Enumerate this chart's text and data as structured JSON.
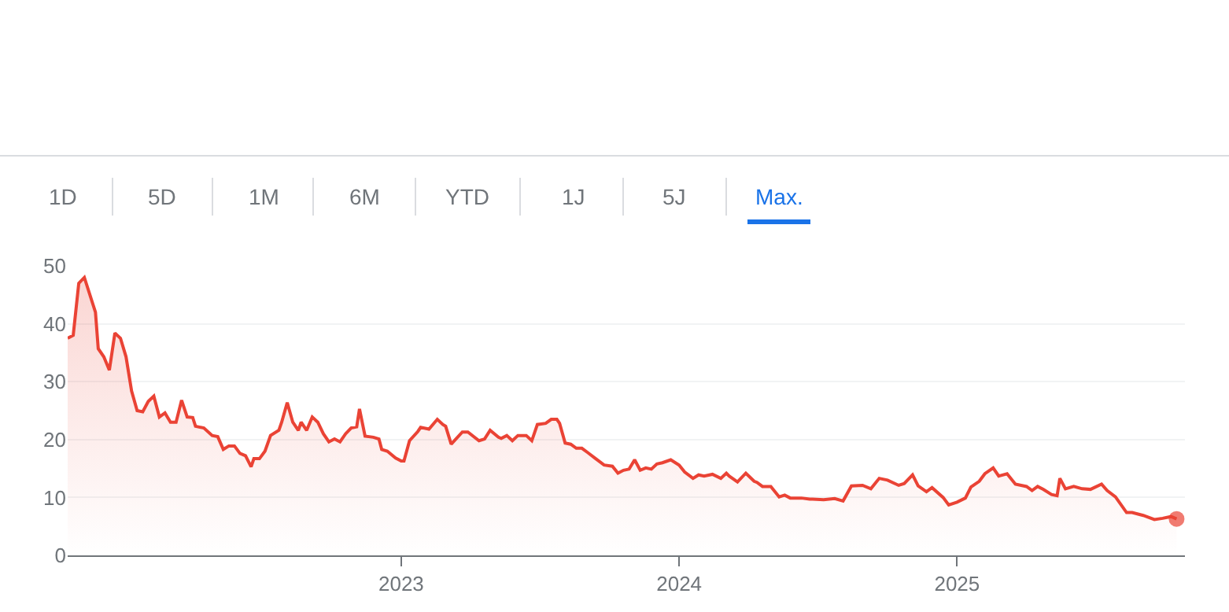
{
  "chart_data": {
    "type": "area",
    "color": "#ea4335",
    "annotations": [
      "1D",
      "5D",
      "1M",
      "6M",
      "YTD",
      "1J",
      "5J",
      "Max."
    ],
    "xlim": [
      2021.8,
      2025.82
    ],
    "xticks": [
      2023,
      2024,
      2025
    ],
    "ylim": [
      0,
      50
    ],
    "yticks": [
      0,
      10,
      20,
      30,
      40,
      50
    ],
    "grid": "y",
    "legend": false,
    "x": [
      2021.8,
      2021.82,
      2021.84,
      2021.86,
      2021.9,
      2021.91,
      2021.93,
      2021.95,
      2021.97,
      2021.99,
      2022.01,
      2022.03,
      2022.05,
      2022.07,
      2022.09,
      2022.11,
      2022.13,
      2022.15,
      2022.17,
      2022.19,
      2022.21,
      2022.23,
      2022.25,
      2022.26,
      2022.29,
      2022.32,
      2022.34,
      2022.36,
      2022.38,
      2022.4,
      2022.42,
      2022.44,
      2022.46,
      2022.47,
      2022.49,
      2022.51,
      2022.53,
      2022.56,
      2022.57,
      2022.59,
      2022.61,
      2022.63,
      2022.64,
      2022.66,
      2022.68,
      2022.7,
      2022.72,
      2022.74,
      2022.76,
      2022.78,
      2022.8,
      2022.82,
      2022.84,
      2022.85,
      2022.87,
      2022.9,
      2022.92,
      2022.93,
      2022.95,
      2022.98,
      2023.0,
      2023.01,
      2023.03,
      2023.06,
      2023.07,
      2023.1,
      2023.13,
      2023.15,
      2023.16,
      2023.18,
      2023.22,
      2023.24,
      2023.28,
      2023.3,
      2023.32,
      2023.35,
      2023.36,
      2023.38,
      2023.4,
      2023.42,
      2023.45,
      2023.47,
      2023.49,
      2023.52,
      2023.54,
      2023.56,
      2023.57,
      2023.59,
      2023.61,
      2023.63,
      2023.65,
      2023.67,
      2023.7,
      2023.73,
      2023.76,
      2023.78,
      2023.8,
      2023.82,
      2023.84,
      2023.86,
      2023.88,
      2023.9,
      2023.92,
      2023.94,
      2023.97,
      2024.0,
      2024.02,
      2024.05,
      2024.07,
      2024.09,
      2024.12,
      2024.15,
      2024.17,
      2024.18,
      2024.21,
      2024.24,
      2024.27,
      2024.28,
      2024.3,
      2024.33,
      2024.36,
      2024.38,
      2024.4,
      2024.44,
      2024.47,
      2024.48,
      2024.52,
      2024.56,
      2024.59,
      2024.62,
      2024.66,
      2024.69,
      2024.72,
      2024.75,
      2024.79,
      2024.81,
      2024.84,
      2024.86,
      2024.89,
      2024.91,
      2024.95,
      2024.97,
      2025.0,
      2025.03,
      2025.05,
      2025.08,
      2025.1,
      2025.13,
      2025.15,
      2025.18,
      2025.21,
      2025.25,
      2025.27,
      2025.29,
      2025.31,
      2025.34,
      2025.36,
      2025.37,
      2025.39,
      2025.42,
      2025.45,
      2025.48,
      2025.52,
      2025.54,
      2025.57,
      2025.61,
      2025.63,
      2025.67,
      2025.71,
      2025.74,
      2025.77,
      2025.79
    ],
    "values": [
      37.5,
      38,
      47,
      48,
      42,
      35.7,
      34.3,
      32,
      38.4,
      37.5,
      34.3,
      28.4,
      25,
      24.8,
      26.6,
      27.5,
      23.9,
      24.6,
      23,
      23,
      26.8,
      23.9,
      23.8,
      22.3,
      22,
      20.7,
      20.5,
      18.3,
      18.9,
      18.9,
      17.6,
      17.2,
      15.3,
      16.7,
      16.7,
      18,
      20.7,
      21.6,
      23,
      26.4,
      23,
      21.6,
      23,
      21.6,
      23.9,
      23,
      21,
      19.6,
      20.1,
      19.6,
      21,
      22,
      22.2,
      25.3,
      20.6,
      20.4,
      20.1,
      18.3,
      18,
      16.8,
      16.3,
      16.3,
      19.8,
      21.4,
      22.1,
      21.8,
      23.5,
      22.6,
      22.3,
      19.2,
      21.3,
      21.3,
      19.8,
      20.1,
      21.6,
      20.4,
      20.2,
      20.7,
      19.8,
      20.7,
      20.7,
      19.8,
      22.6,
      22.8,
      23.5,
      23.5,
      22.8,
      19.4,
      19.2,
      18.5,
      18.5,
      17.8,
      16.7,
      15.6,
      15.4,
      14.2,
      14.7,
      14.9,
      16.5,
      14.7,
      15.1,
      14.9,
      15.8,
      16,
      16.5,
      15.6,
      14.4,
      13.3,
      13.9,
      13.7,
      14,
      13.3,
      14.2,
      13.7,
      12.7,
      14.2,
      12.8,
      12.6,
      11.9,
      11.9,
      10.1,
      10.4,
      9.9,
      9.9,
      9.7,
      9.7,
      9.6,
      9.8,
      9.4,
      12,
      12.1,
      11.5,
      13.3,
      13,
      12.1,
      12.4,
      13.9,
      12,
      11,
      11.7,
      10,
      8.7,
      9.2,
      9.9,
      11.8,
      12.8,
      14.1,
      15.1,
      13.7,
      14.1,
      12.3,
      11.9,
      11.2,
      11.9,
      11.4,
      10.5,
      10.3,
      13.3,
      11.5,
      11.9,
      11.5,
      11.4,
      12.3,
      11.2,
      10.1,
      7.4,
      7.4,
      6.9,
      6.2,
      6.4,
      6.7,
      6.3
    ]
  }
}
